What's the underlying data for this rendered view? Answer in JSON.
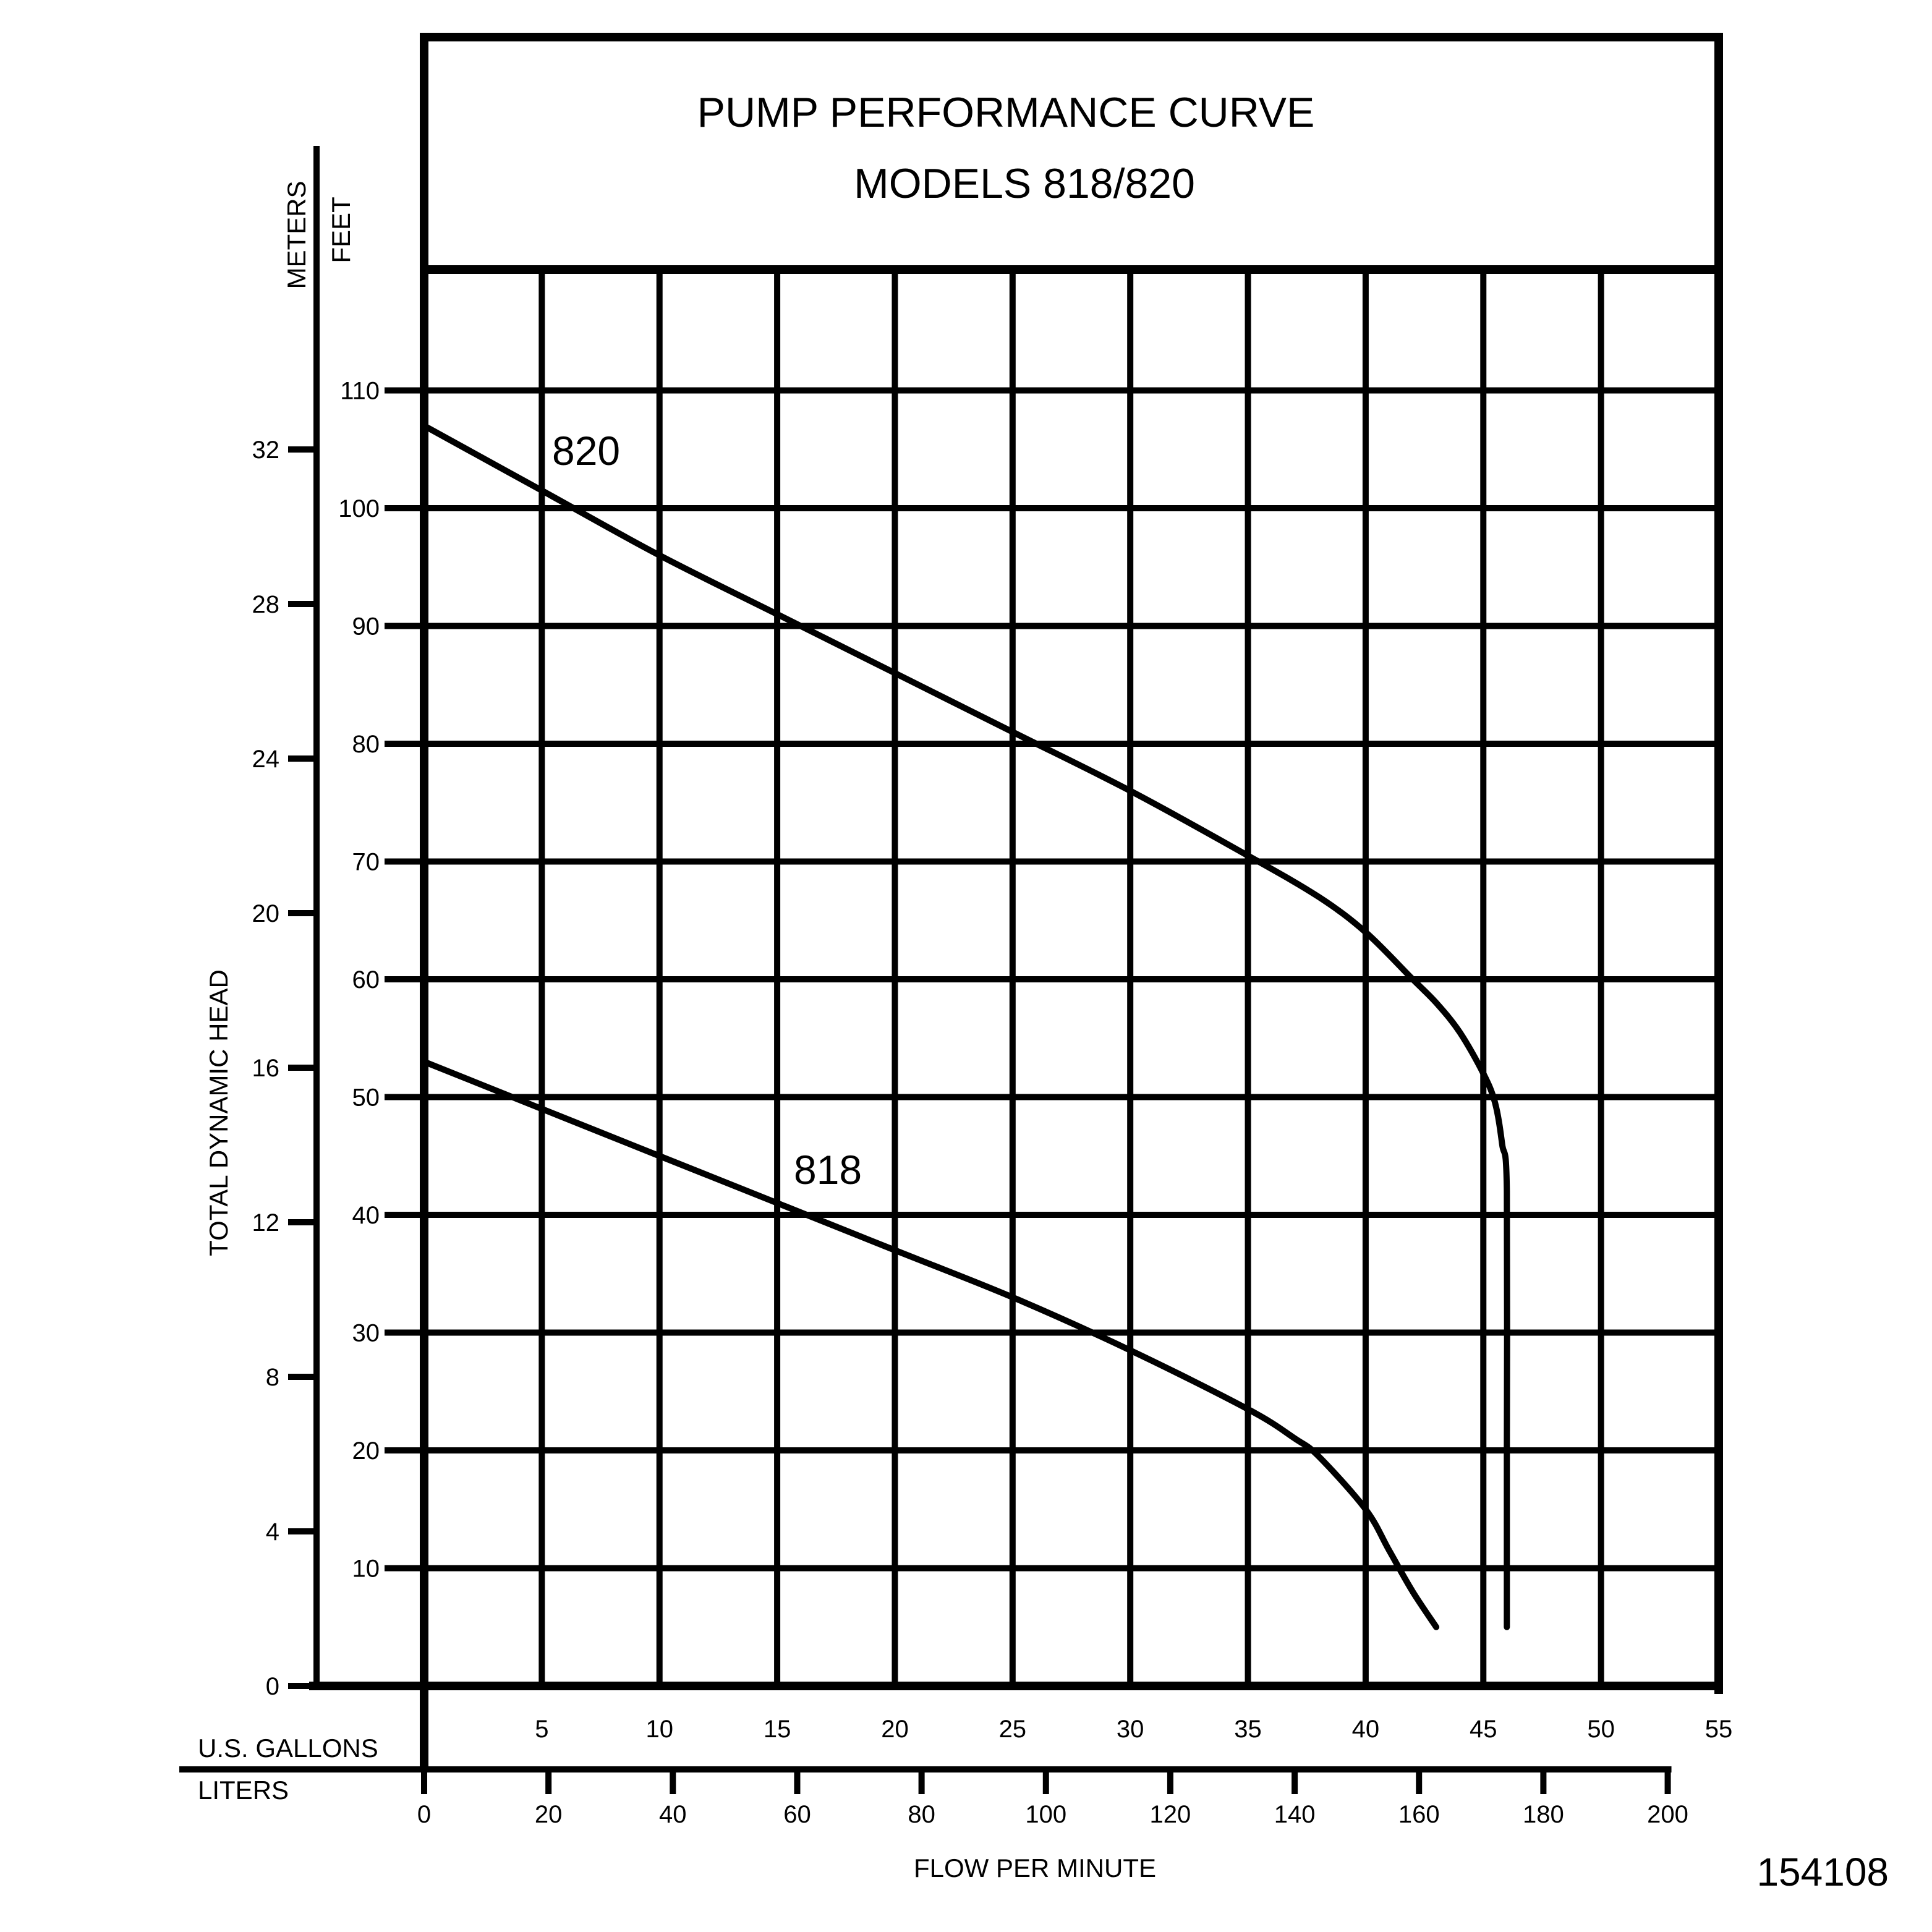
{
  "chart_data": {
    "type": "line",
    "title": "PUMP PERFORMANCE CURVE",
    "subtitle": "MODELS 818/820",
    "ylabel": "TOTAL DYNAMIC HEAD",
    "y_unit_meters": "METERS",
    "y_unit_feet": "FEET",
    "xlabel": "FLOW PER MINUTE",
    "x_unit_gallons": "U.S. GALLONS",
    "x_unit_liters": "LITERS",
    "x_gallons_range": [
      0,
      55
    ],
    "x_gallons_ticks": [
      "5",
      "10",
      "15",
      "20",
      "25",
      "30",
      "35",
      "40",
      "45",
      "50",
      "55"
    ],
    "x_liters_ticks": [
      "0",
      "20",
      "40",
      "60",
      "80",
      "100",
      "120",
      "140",
      "160",
      "180",
      "200"
    ],
    "y_feet_range": [
      0,
      120
    ],
    "y_feet_ticks": [
      "10",
      "20",
      "30",
      "40",
      "50",
      "60",
      "70",
      "80",
      "90",
      "100",
      "110"
    ],
    "y_meters_ticks": [
      "0",
      "4",
      "8",
      "12",
      "16",
      "20",
      "24",
      "28",
      "32"
    ],
    "grid": true,
    "series": [
      {
        "name": "820",
        "x": [
          0,
          5,
          10,
          15,
          20,
          25,
          30,
          35,
          38,
          40,
          42,
          43,
          44,
          45,
          45.5,
          45.8,
          46,
          46,
          46
        ],
        "y": [
          107,
          101.5,
          96,
          91,
          86,
          81,
          76,
          70.5,
          67,
          64,
          60,
          58,
          55.5,
          52,
          49.5,
          46,
          42,
          20,
          5
        ]
      },
      {
        "name": "818",
        "x": [
          0,
          5,
          10,
          15,
          20,
          25,
          30,
          35,
          37,
          38,
          40,
          41,
          42,
          43
        ],
        "y": [
          53,
          49,
          45,
          41,
          37,
          33,
          28.5,
          23.5,
          21,
          19.5,
          15,
          11.5,
          8,
          5
        ]
      }
    ]
  },
  "ref_number": "154108"
}
